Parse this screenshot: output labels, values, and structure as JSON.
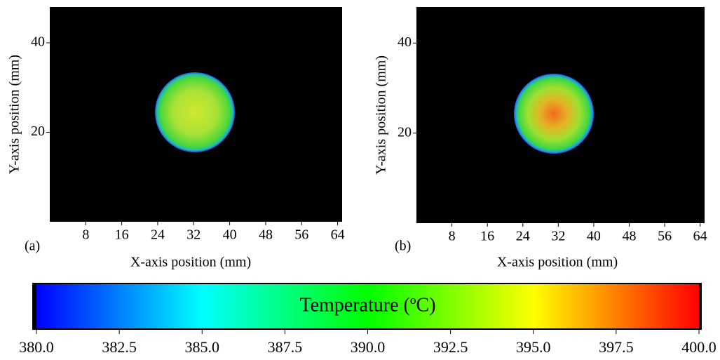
{
  "chart_data": [
    {
      "type": "heatmap",
      "panel_label": "(a)",
      "xlabel": "X-axis position (mm)",
      "ylabel": "Y-axis position (mm)",
      "xlim": [
        0,
        65
      ],
      "ylim": [
        0,
        48
      ],
      "xticks": [
        8,
        16,
        24,
        32,
        40,
        48,
        56,
        64
      ],
      "yticks": [
        20,
        40
      ]
    },
    {
      "type": "heatmap",
      "panel_label": "(b)",
      "xlabel": "X-axis position (mm)",
      "ylabel": "Y-axis position (mm)",
      "xlim": [
        0,
        65
      ],
      "ylim": [
        0,
        48
      ],
      "xticks": [
        8,
        16,
        24,
        32,
        40,
        48,
        56,
        64
      ],
      "yticks": [
        20,
        40
      ]
    },
    {
      "type": "colorbar",
      "label": "Temperature (ºC)",
      "lim": [
        380,
        400
      ],
      "ticks": [
        {
          "value": 380,
          "label": "380.0"
        },
        {
          "value": 382.5,
          "label": "382.5"
        },
        {
          "value": 385,
          "label": "385.0"
        },
        {
          "value": 387.5,
          "label": "387.5"
        },
        {
          "value": 390,
          "label": "390.0"
        },
        {
          "value": 392.5,
          "label": "392.5"
        },
        {
          "value": 395,
          "label": "395.0"
        },
        {
          "value": 397.5,
          "label": "397.5"
        },
        {
          "value": 400,
          "label": "400.0"
        }
      ],
      "colors": [
        "#0000ff",
        "#00ffff",
        "#00ff00",
        "#ffff00",
        "#ff0000"
      ]
    }
  ]
}
